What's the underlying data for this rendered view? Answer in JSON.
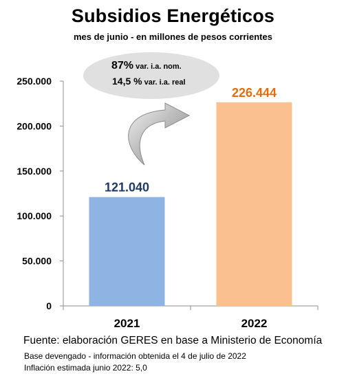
{
  "title": "Subsidios Energéticos",
  "subtitle": "mes de junio - en millones de pesos corrientes",
  "callout": {
    "line1_value": "87%",
    "line1_note": " var. i.a. nom.",
    "line2_value": "14,5 %",
    "line2_note": " var. i.a. real"
  },
  "footer": {
    "source": "Fuente: elaboración GERES en base a Ministerio de Economía",
    "note1": "Base devengado - información obtenida el 4 de julio de 2022",
    "note2": "Inflación estimada junio 2022: 5,0"
  },
  "colors": {
    "bar_2021": "#8eb4e3",
    "bar_2022": "#fac090",
    "label_2021": "#1f3864",
    "label_2022": "#e46c0a",
    "callout_bg": "#e0e0e0"
  },
  "chart_data": {
    "type": "bar",
    "categories": [
      "2021",
      "2022"
    ],
    "values": [
      121040,
      226444
    ],
    "data_labels": [
      "121.040",
      "226.444"
    ],
    "ylim": [
      0,
      250000
    ],
    "yticks": [
      0,
      50000,
      100000,
      150000,
      200000,
      250000
    ],
    "ytick_labels": [
      "0",
      "50.000",
      "100.000",
      "150.000",
      "200.000",
      "250.000"
    ],
    "grid": false,
    "legend": "none"
  }
}
